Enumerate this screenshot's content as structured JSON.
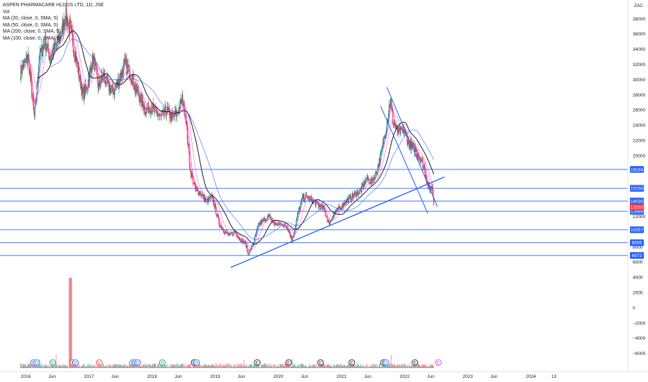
{
  "chart_data": {
    "type": "candlestick",
    "title": "ASPEN PHARMACARE HLDGS LTD, 1D, JSE",
    "legend": [
      "Vol",
      "MA (20, close, 0, SMA, 5)",
      "MA (50, close, 0, SMA, 5)",
      "MA (200, close, 0, SMA, 5)",
      "MA (100, close, 0, SMA, 5)"
    ],
    "currency": "ZAC",
    "ylim": [
      -7000,
      40000
    ],
    "price_ticks": [
      38000,
      36000,
      34000,
      32000,
      30000,
      28000,
      26000,
      24000,
      22000,
      20000,
      18000,
      16000,
      14000,
      12000,
      10000,
      8000,
      6000,
      4000,
      2000,
      0,
      -2000,
      -4000,
      -6000
    ],
    "x_tick_labels": [
      "2016",
      "Jun",
      "2017",
      "Jun",
      "2018",
      "Jun",
      "2019",
      "Jun",
      "2020",
      "Jun",
      "2021",
      "Jun",
      "2022",
      "Jun",
      "2023",
      "Jun",
      "2024",
      "13"
    ],
    "horizontal_levels": [
      18184,
      15700,
      14030,
      12689,
      10257,
      8555,
      6872
    ],
    "last_price": 13250,
    "price_series": [
      [
        "2015-12-01",
        31000
      ],
      [
        "2016-01-15",
        33000
      ],
      [
        "2016-02-20",
        25000
      ],
      [
        "2016-03-20",
        33000
      ],
      [
        "2016-04-20",
        35000
      ],
      [
        "2016-05-20",
        33000
      ],
      [
        "2016-06-25",
        34500
      ],
      [
        "2016-07-25",
        36000
      ],
      [
        "2016-08-20",
        38500
      ],
      [
        "2016-09-20",
        36000
      ],
      [
        "2016-10-25",
        32000
      ],
      [
        "2016-11-25",
        28000
      ],
      [
        "2016-12-20",
        29000
      ],
      [
        "2017-01-25",
        33000
      ],
      [
        "2017-02-25",
        29000
      ],
      [
        "2017-03-25",
        30500
      ],
      [
        "2017-04-25",
        29000
      ],
      [
        "2017-05-25",
        28500
      ],
      [
        "2017-06-25",
        30000
      ],
      [
        "2017-07-25",
        32000
      ],
      [
        "2017-08-25",
        31000
      ],
      [
        "2017-09-25",
        29000
      ],
      [
        "2017-10-25",
        27500
      ],
      [
        "2017-11-25",
        26000
      ],
      [
        "2017-12-25",
        26500
      ],
      [
        "2018-01-25",
        25500
      ],
      [
        "2018-02-25",
        25000
      ],
      [
        "2018-03-25",
        26000
      ],
      [
        "2018-04-25",
        25000
      ],
      [
        "2018-05-25",
        25500
      ],
      [
        "2018-06-25",
        27500
      ],
      [
        "2018-07-15",
        25000
      ],
      [
        "2018-08-10",
        18000
      ],
      [
        "2018-09-10",
        15500
      ],
      [
        "2018-10-10",
        15000
      ],
      [
        "2018-11-10",
        14000
      ],
      [
        "2018-12-15",
        14500
      ],
      [
        "2019-01-25",
        11000
      ],
      [
        "2019-02-25",
        10000
      ],
      [
        "2019-03-25",
        9500
      ],
      [
        "2019-04-25",
        10000
      ],
      [
        "2019-05-25",
        9000
      ],
      [
        "2019-06-25",
        8500
      ],
      [
        "2019-07-10",
        7000
      ],
      [
        "2019-08-10",
        8500
      ],
      [
        "2019-09-10",
        11000
      ],
      [
        "2019-10-10",
        11500
      ],
      [
        "2019-11-10",
        12000
      ],
      [
        "2019-12-10",
        11000
      ],
      [
        "2020-01-25",
        11000
      ],
      [
        "2020-02-25",
        10500
      ],
      [
        "2020-03-20",
        8800
      ],
      [
        "2020-04-20",
        12000
      ],
      [
        "2020-05-20",
        14500
      ],
      [
        "2020-06-20",
        14500
      ],
      [
        "2020-07-20",
        14000
      ],
      [
        "2020-08-20",
        13500
      ],
      [
        "2020-09-20",
        13000
      ],
      [
        "2020-10-20",
        11000
      ],
      [
        "2020-11-20",
        12500
      ],
      [
        "2020-12-20",
        13000
      ],
      [
        "2021-01-25",
        14000
      ],
      [
        "2021-02-25",
        14500
      ],
      [
        "2021-03-25",
        15000
      ],
      [
        "2021-04-25",
        15500
      ],
      [
        "2021-05-25",
        17000
      ],
      [
        "2021-06-25",
        16500
      ],
      [
        "2021-07-25",
        18000
      ],
      [
        "2021-08-25",
        21000
      ],
      [
        "2021-09-25",
        25000
      ],
      [
        "2021-10-10",
        27500
      ],
      [
        "2021-10-25",
        24500
      ],
      [
        "2021-11-25",
        23000
      ],
      [
        "2021-12-25",
        23500
      ],
      [
        "2022-01-25",
        21500
      ],
      [
        "2022-02-25",
        21000
      ],
      [
        "2022-03-25",
        20000
      ],
      [
        "2022-04-25",
        18500
      ],
      [
        "2022-05-10",
        16500
      ],
      [
        "2022-05-25",
        15500
      ],
      [
        "2022-06-10",
        16000
      ],
      [
        "2022-06-20",
        13250
      ]
    ],
    "volume_bars": {
      "2016-03-20": 5,
      "2016-09-15": 20,
      "2016-06-25": 8,
      "2019-06-15": 5,
      "2020-03-20": 6,
      "2021-10-15": 8
    }
  },
  "events": [
    {
      "date": "2016-02-15",
      "letter": "D",
      "color": "#2962ff"
    },
    {
      "date": "2016-03-05",
      "letter": "D",
      "color": "#2962ff"
    },
    {
      "date": "2016-06-05",
      "letter": "E",
      "color": "#089981"
    },
    {
      "date": "2016-09-30",
      "letter": "E",
      "color": "#f23645"
    },
    {
      "date": "2016-10-15",
      "letter": "D",
      "color": "#2962ff"
    },
    {
      "date": "2017-03-01",
      "letter": "E",
      "color": "#f23645"
    },
    {
      "date": "2017-09-10",
      "letter": "E",
      "color": "#089981"
    },
    {
      "date": "2017-09-25",
      "letter": "D",
      "color": "#2962ff"
    },
    {
      "date": "2017-10-10",
      "letter": "D",
      "color": "#2962ff"
    },
    {
      "date": "2018-03-01",
      "letter": "E",
      "color": "#089981"
    },
    {
      "date": "2018-09-01",
      "letter": "E",
      "color": "#131722"
    },
    {
      "date": "2018-09-15",
      "letter": "D",
      "color": "#2962ff"
    },
    {
      "date": "2019-09-01",
      "letter": "E",
      "color": "#131722"
    },
    {
      "date": "2020-03-01",
      "letter": "E",
      "color": "#131722"
    },
    {
      "date": "2020-09-01",
      "letter": "E",
      "color": "#131722"
    },
    {
      "date": "2021-03-01",
      "letter": "E",
      "color": "#131722"
    },
    {
      "date": "2021-09-01",
      "letter": "E",
      "color": "#131722"
    },
    {
      "date": "2021-09-15",
      "letter": "D",
      "color": "#2962ff"
    },
    {
      "date": "2022-03-01",
      "letter": "E",
      "color": "#131722"
    },
    {
      "date": "2022-07-15",
      "letter": "E",
      "color": "#e040fb"
    }
  ],
  "colors": {
    "up": "#089981",
    "down": "#f23645",
    "ma20": "#e040fb",
    "ma50": "#f48fb1",
    "ma100": "#131722",
    "ma200": "#2962ff",
    "levels": "#2962ff",
    "last_price": "#f23645"
  }
}
